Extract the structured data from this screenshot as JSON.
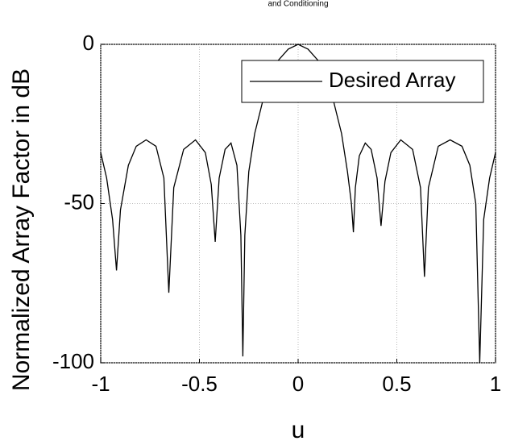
{
  "chart_data": {
    "type": "line",
    "title": "and Conditioning",
    "xlabel": "u",
    "ylabel": "Normalized Array Factor in dB",
    "x": [
      -1,
      -0.97,
      -0.94,
      -0.92,
      -0.9,
      -0.86,
      -0.82,
      -0.77,
      -0.72,
      -0.68,
      -0.655,
      -0.63,
      -0.58,
      -0.52,
      -0.47,
      -0.44,
      -0.42,
      -0.4,
      -0.37,
      -0.34,
      -0.31,
      -0.29,
      -0.28,
      -0.27,
      -0.25,
      -0.22,
      -0.18,
      -0.14,
      -0.1,
      -0.05,
      0,
      0.05,
      0.1,
      0.14,
      0.18,
      0.22,
      0.25,
      0.27,
      0.28,
      0.29,
      0.31,
      0.34,
      0.37,
      0.4,
      0.42,
      0.44,
      0.47,
      0.52,
      0.58,
      0.62,
      0.64,
      0.66,
      0.71,
      0.77,
      0.83,
      0.87,
      0.9,
      0.92,
      0.94,
      0.97,
      1
    ],
    "series": [
      {
        "name": "Desired Array",
        "color": "#000000",
        "values": [
          -34,
          -42,
          -55,
          -71,
          -52,
          -38,
          -32,
          -30,
          -32,
          -42,
          -78,
          -45,
          -33,
          -30,
          -34,
          -44,
          -62,
          -42,
          -33,
          -31,
          -38,
          -60,
          -98,
          -60,
          -40,
          -28,
          -18,
          -10,
          -5,
          -1.5,
          0,
          -1.5,
          -5,
          -10,
          -18,
          -28,
          -40,
          -50,
          -59,
          -45,
          -35,
          -31,
          -33,
          -42,
          -57,
          -43,
          -34,
          -30,
          -33,
          -45,
          -73,
          -45,
          -32,
          -30,
          -32,
          -38,
          -50,
          -100,
          -55,
          -42,
          -34
        ]
      }
    ],
    "xlim": [
      -1,
      1
    ],
    "ylim": [
      -100,
      0
    ],
    "xticks": [
      -1,
      -0.5,
      0,
      0.5,
      1
    ],
    "yticks": [
      -100,
      -50,
      0
    ],
    "grid": true,
    "legend": "upper right"
  }
}
